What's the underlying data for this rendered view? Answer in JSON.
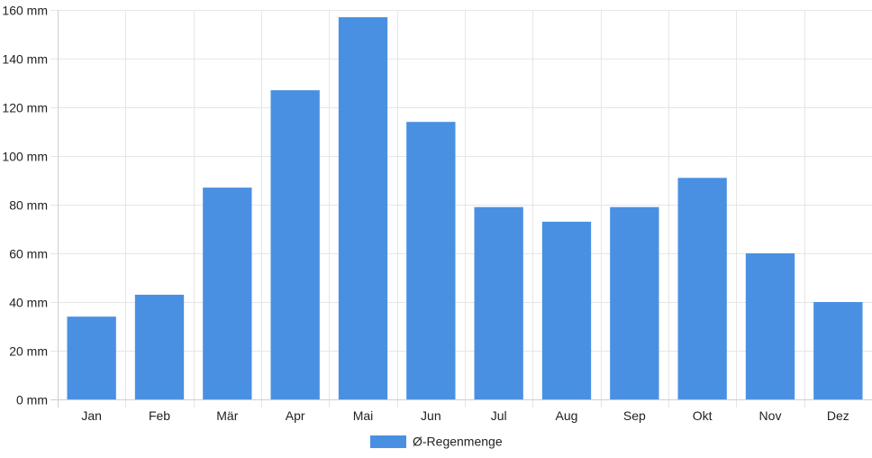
{
  "chart_data": {
    "type": "bar",
    "categories": [
      "Jan",
      "Feb",
      "Mär",
      "Apr",
      "Mai",
      "Jun",
      "Jul",
      "Aug",
      "Sep",
      "Okt",
      "Nov",
      "Dez"
    ],
    "series": [
      {
        "name": "Ø-Regenmenge",
        "color": "#4a90e2",
        "values": [
          34,
          43,
          87,
          127,
          157,
          114,
          79,
          73,
          79,
          91,
          60,
          40
        ]
      }
    ],
    "y_ticks": [
      "0 mm",
      "20 mm",
      "40 mm",
      "60 mm",
      "80 mm",
      "100 mm",
      "120 mm",
      "140 mm",
      "160 mm"
    ],
    "ylim": [
      0,
      160
    ],
    "y_unit": "mm",
    "grid": true,
    "legend_position": "bottom-center"
  }
}
